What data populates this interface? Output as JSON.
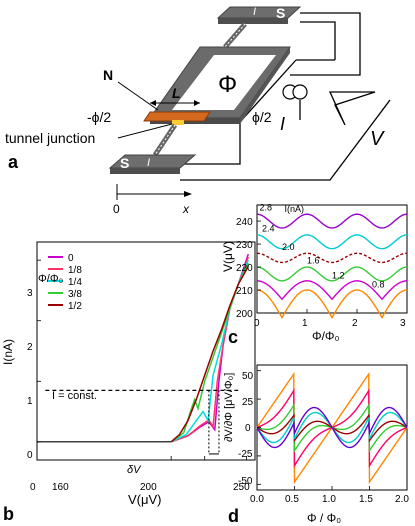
{
  "schematic": {
    "panel_letter": "a",
    "flux_symbol": "Φ",
    "label_S_top": "S",
    "label_S_bottom": "S",
    "label_I_top": "I",
    "label_I_bottom": "I",
    "label_N": "N",
    "label_L": "L",
    "label_phase_left": "-ϕ/2",
    "label_phase_right": "ϕ/2",
    "label_tunnel": "tunnel junction",
    "label_source_I": "I",
    "label_V": "V",
    "axis_origin": "0",
    "axis_x": "x"
  },
  "panel_b": {
    "letter": "b",
    "legend_title": "Φ/Φ₀",
    "ylabel": "I(nA)",
    "xlabel": "V(μV)",
    "const_label": "I = const.",
    "delta_label": "δV",
    "x_ticks": [
      "0",
      "160",
      "200",
      "250"
    ],
    "y_ticks": [
      "0",
      "1",
      "2",
      "3"
    ]
  },
  "panel_c": {
    "letter": "c",
    "ylabel": "V(μV)",
    "xlabel": "Φ/Φ₀",
    "x_ticks": [
      "0",
      "1",
      "2",
      "3"
    ],
    "y_ticks": [
      "200",
      "210",
      "220",
      "230",
      "240"
    ]
  },
  "panel_d": {
    "letter": "d",
    "ylabel": "∂V/∂Φ [μV/Φ₀]",
    "xlabel": "Φ / Φ₀",
    "x_ticks": [
      "0.0",
      "0.5",
      "1.0",
      "1.5",
      "2.0"
    ],
    "y_ticks": [
      "-50",
      "-25",
      "0",
      "25",
      "50"
    ]
  },
  "chart_data": [
    {
      "type": "line",
      "panel": "b",
      "xlabel": "V(μV)",
      "ylabel": "I(nA)",
      "xlim": [
        0,
        260
      ],
      "ylim": [
        -0.3,
        3.3
      ],
      "legend_title": "Φ/Φ₀",
      "legend_position": "top-left",
      "series": [
        {
          "name": "0",
          "color": "#cc00cc",
          "x": [
            160,
            180,
            195,
            205,
            212,
            217,
            222,
            230,
            240,
            252
          ],
          "y": [
            0,
            0.1,
            0.25,
            0.33,
            0.2,
            1.0,
            1.6,
            2.2,
            2.6,
            3.1
          ]
        },
        {
          "name": "1/8",
          "color": "#ff3366",
          "x": [
            160,
            180,
            195,
            205,
            210,
            215,
            222,
            230,
            240,
            252
          ],
          "y": [
            0,
            0.1,
            0.27,
            0.36,
            0.25,
            1.0,
            1.6,
            2.2,
            2.6,
            3.05
          ]
        },
        {
          "name": "1/4",
          "color": "#00dddd",
          "x": [
            160,
            178,
            190,
            198,
            204,
            210,
            220,
            230,
            240,
            252
          ],
          "y": [
            0,
            0.12,
            0.35,
            0.5,
            0.35,
            1.1,
            1.6,
            2.2,
            2.6,
            3.0
          ]
        },
        {
          "name": "3/8",
          "color": "#33cc33",
          "x": [
            160,
            175,
            183,
            188,
            192,
            200,
            215,
            230,
            240,
            252
          ],
          "y": [
            0,
            0.15,
            0.5,
            0.7,
            0.55,
            1.0,
            1.6,
            2.2,
            2.6,
            2.95
          ]
        },
        {
          "name": "1/2",
          "color": "#990000",
          "x": [
            160,
            170,
            180,
            190,
            200,
            210,
            220,
            230,
            240,
            252
          ],
          "y": [
            0,
            0.12,
            0.35,
            0.7,
            1.1,
            1.5,
            1.85,
            2.25,
            2.6,
            2.9
          ]
        }
      ],
      "annotations": [
        "I = const.",
        "δV"
      ]
    },
    {
      "type": "line",
      "panel": "c",
      "xlabel": "Φ/Φ₀",
      "ylabel": "V(μV)",
      "xlim": [
        0,
        3
      ],
      "ylim": [
        200,
        247
      ],
      "legend_title": "I(nA)",
      "series": [
        {
          "name": "2.8",
          "color": "#9900cc",
          "mean": 240,
          "amp": 3
        },
        {
          "name": "2.4",
          "color": "#00cccc",
          "mean": 231,
          "amp": 3
        },
        {
          "name": "2.0",
          "color": "#990000",
          "mean": 224,
          "amp": 2
        },
        {
          "name": "1.6",
          "color": "#33cc33",
          "mean": 217,
          "amp": 3
        },
        {
          "name": "1.2",
          "color": "#cc00cc",
          "mean": 210,
          "amp": 4
        },
        {
          "name": "0.8",
          "color": "#ff8800",
          "mean": 204,
          "amp": 6
        }
      ]
    },
    {
      "type": "line",
      "panel": "d",
      "xlabel": "Φ / Φ₀",
      "ylabel": "∂V/∂Φ [μV/Φ₀]",
      "xlim": [
        0,
        2
      ],
      "ylim": [
        -55,
        55
      ],
      "series": [
        {
          "name": "0.8",
          "color": "#ff8800",
          "amp": 48
        },
        {
          "name": "1.2",
          "color": "#ff0066",
          "amp": 40
        },
        {
          "name": "1.6",
          "color": "#33cc33",
          "amp": 30
        },
        {
          "name": "2.0",
          "color": "#990000",
          "amp": 22
        },
        {
          "name": "2.4",
          "color": "#00cccc",
          "amp": 28
        },
        {
          "name": "2.8",
          "color": "#6600cc",
          "amp": 25
        }
      ]
    }
  ]
}
